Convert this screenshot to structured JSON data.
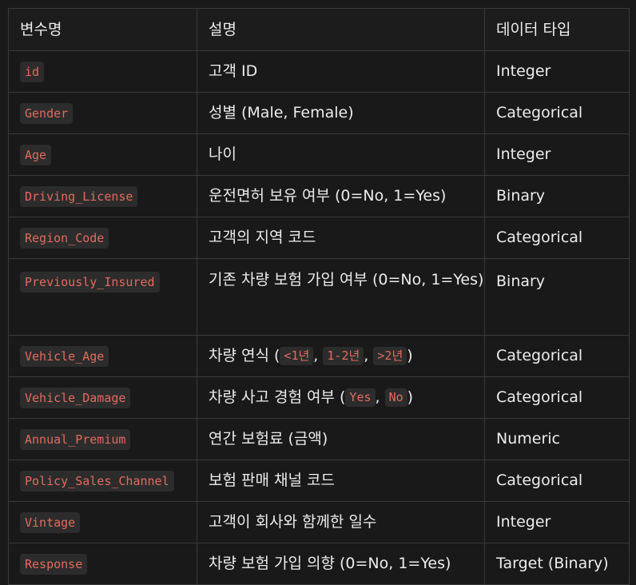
{
  "headers": [
    "변수명",
    "설명",
    "데이터 타입"
  ],
  "rows": [
    {
      "var": "id",
      "desc": "고객 ID",
      "type": "Integer"
    },
    {
      "var": "Gender",
      "desc": "성별 (Male, Female)",
      "type": "Categorical"
    },
    {
      "var": "Age",
      "desc": "나이",
      "type": "Integer"
    },
    {
      "var": "Driving_License",
      "desc": "운전면허 보유 여부 (0=No, 1=Yes)",
      "type": "Binary"
    },
    {
      "var": "Region_Code",
      "desc": "고객의 지역 코드",
      "type": "Categorical"
    },
    {
      "var": "Previously_Insured",
      "desc": "기존 차량 보험 가입 여부 (0=No, 1=Yes)",
      "type": "Binary"
    },
    {
      "var": "Vehicle_Age",
      "desc_prefix": "차량 연식 (",
      "codes": [
        "<1년",
        "1-2년",
        ">2년"
      ],
      "desc_suffix": ")",
      "type": "Categorical"
    },
    {
      "var": "Vehicle_Damage",
      "desc_prefix": "차량 사고 경험 여부 (",
      "codes": [
        "Yes",
        "No"
      ],
      "desc_suffix": ")",
      "type": "Categorical"
    },
    {
      "var": "Annual_Premium",
      "desc": "연간 보험료 (금액)",
      "type": "Numeric"
    },
    {
      "var": "Policy_Sales_Channel",
      "desc": "보험 판매 채널 코드",
      "type": "Categorical"
    },
    {
      "var": "Vintage",
      "desc": "고객이 회사와 함께한 일수",
      "type": "Integer"
    },
    {
      "var": "Response",
      "desc": "차량 보험 가입 의향 (0=No, 1=Yes)",
      "type": "Target (Binary)"
    }
  ],
  "colors": {
    "background": "#191919",
    "border": "#3a3a3a",
    "code_text": "#e36b5f",
    "code_bg": "#2c2c2c"
  }
}
